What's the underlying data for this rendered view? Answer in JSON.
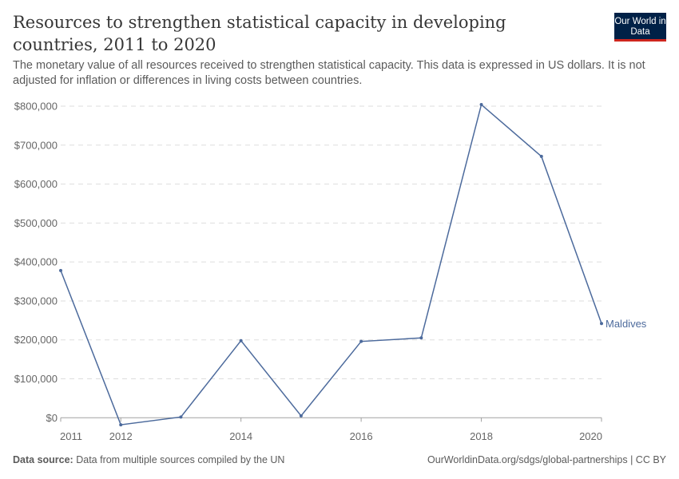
{
  "header": {
    "title": "Resources to strengthen statistical capacity in developing countries, 2011 to 2020",
    "subtitle": "The monetary value of all resources received to strengthen statistical capacity. This data is expressed in US dollars. It is not adjusted for inflation or differences in living costs between countries.",
    "logo_text": "Our World in Data"
  },
  "footer": {
    "source_label": "Data source:",
    "source_text": "Data from multiple sources compiled by the UN",
    "link": "OurWorldinData.org/sdgs/global-partnerships | CC BY"
  },
  "chart_data": {
    "type": "line",
    "title": "Resources to strengthen statistical capacity in developing countries, 2011 to 2020",
    "x": [
      2011,
      2012,
      2013,
      2014,
      2015,
      2016,
      2017,
      2018,
      2019,
      2020
    ],
    "series": [
      {
        "name": "Maldives",
        "color": "#4c6a9c",
        "values": [
          378000,
          -18000,
          2000,
          198000,
          5000,
          196000,
          205000,
          804000,
          671000,
          242000
        ]
      }
    ],
    "ylim": [
      0,
      800000
    ],
    "yticks": [
      0,
      100000,
      200000,
      300000,
      400000,
      500000,
      600000,
      700000,
      800000
    ],
    "ytick_labels": [
      "$0",
      "$100,000",
      "$200,000",
      "$300,000",
      "$400,000",
      "$500,000",
      "$600,000",
      "$700,000",
      "$800,000"
    ],
    "xticks": [
      2011,
      2012,
      2014,
      2016,
      2018,
      2020
    ],
    "xtick_labels": [
      "2011",
      "2012",
      "2014",
      "2016",
      "2018",
      "2020"
    ],
    "grid": true,
    "legend": "inline-right"
  }
}
